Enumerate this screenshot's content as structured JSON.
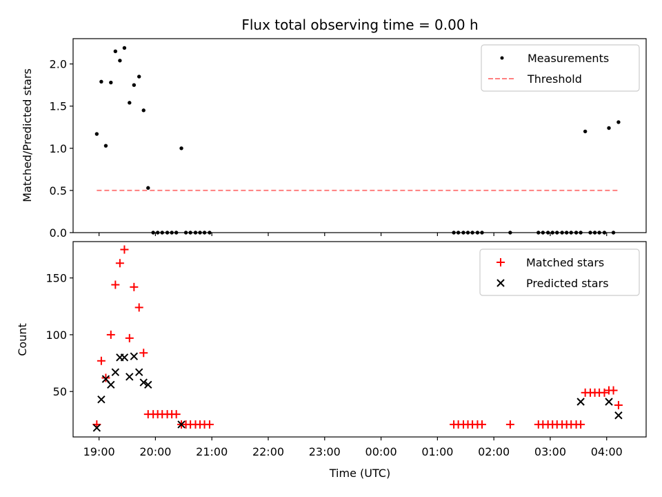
{
  "chart_data": [
    {
      "type": "scatter",
      "title": "Flux total observing time = 0.00 h",
      "xlabel": "",
      "ylabel": "Matched/Predicted stars",
      "xlim": [
        18.54,
        28.7
      ],
      "ylim": [
        0.0,
        2.3
      ],
      "yticks": [
        "0.0",
        "0.5",
        "1.0",
        "1.5",
        "2.0"
      ],
      "legend_position": "upper right",
      "grid": false,
      "series": [
        {
          "name": "Measurements",
          "marker": "dot",
          "color": "#000000",
          "x": [
            18.96,
            19.04,
            19.12,
            19.21,
            19.29,
            19.37,
            19.45,
            19.54,
            19.62,
            19.71,
            19.79,
            19.87,
            19.96,
            20.04,
            20.12,
            20.21,
            20.29,
            20.37,
            20.46,
            20.54,
            20.62,
            20.71,
            20.79,
            20.87,
            20.96,
            25.29,
            25.37,
            25.46,
            25.54,
            25.62,
            25.71,
            25.79,
            26.29,
            26.79,
            26.87,
            26.96,
            27.04,
            27.12,
            27.21,
            27.29,
            27.37,
            27.46,
            27.54,
            27.62,
            27.71,
            27.79,
            27.87,
            27.96,
            28.04,
            28.12,
            28.21
          ],
          "y": [
            1.17,
            1.79,
            1.03,
            1.78,
            2.15,
            2.04,
            2.19,
            1.54,
            1.75,
            1.85,
            1.45,
            0.53,
            0.0,
            0.0,
            0.0,
            0.0,
            0.0,
            0.0,
            1.0,
            0.0,
            0.0,
            0.0,
            0.0,
            0.0,
            0.0,
            0.0,
            0.0,
            0.0,
            0.0,
            0.0,
            0.0,
            0.0,
            0.0,
            0.0,
            0.0,
            0.0,
            0.0,
            0.0,
            0.0,
            0.0,
            0.0,
            0.0,
            0.0,
            1.2,
            0.0,
            0.0,
            0.0,
            0.0,
            1.24,
            0.0,
            1.31
          ]
        },
        {
          "name": "Threshold",
          "marker": "dashed-line",
          "color": "#ff7f7f",
          "x": [
            18.96,
            28.21
          ],
          "y": [
            0.5,
            0.5
          ]
        }
      ]
    },
    {
      "type": "scatter",
      "title": "",
      "xlabel": "Time (UTC)",
      "ylabel": "Count",
      "xlim": [
        18.54,
        28.7
      ],
      "ylim": [
        10,
        182
      ],
      "yticks": [
        "50",
        "100",
        "150"
      ],
      "xticks": [
        "19:00",
        "20:00",
        "21:00",
        "22:00",
        "23:00",
        "00:00",
        "01:00",
        "02:00",
        "03:00",
        "04:00"
      ],
      "legend_position": "upper right",
      "grid": false,
      "series": [
        {
          "name": "Matched stars",
          "marker": "plus",
          "color": "#ff0000",
          "x": [
            18.96,
            19.04,
            19.12,
            19.21,
            19.29,
            19.37,
            19.45,
            19.54,
            19.62,
            19.71,
            19.79,
            19.87,
            19.96,
            20.04,
            20.12,
            20.21,
            20.29,
            20.37,
            20.46,
            20.54,
            20.62,
            20.71,
            20.79,
            20.87,
            20.96,
            25.29,
            25.37,
            25.46,
            25.54,
            25.62,
            25.71,
            25.79,
            26.29,
            26.79,
            26.87,
            26.96,
            27.04,
            27.12,
            27.21,
            27.29,
            27.37,
            27.46,
            27.54,
            27.62,
            27.71,
            27.79,
            27.87,
            27.96,
            28.04,
            28.12,
            28.21
          ],
          "y": [
            21,
            77,
            62,
            100,
            144,
            163,
            175,
            97,
            142,
            124,
            84,
            30,
            30,
            30,
            30,
            30,
            30,
            30,
            21,
            21,
            21,
            21,
            21,
            21,
            21,
            21,
            21,
            21,
            21,
            21,
            21,
            21,
            21,
            21,
            21,
            21,
            21,
            21,
            21,
            21,
            21,
            21,
            21,
            49,
            49,
            49,
            49,
            49,
            51,
            51,
            38
          ]
        },
        {
          "name": "Predicted stars",
          "marker": "x",
          "color": "#000000",
          "x": [
            18.96,
            19.04,
            19.12,
            19.21,
            19.29,
            19.37,
            19.45,
            19.54,
            19.62,
            19.71,
            19.79,
            19.87,
            20.46,
            27.54,
            28.04,
            28.21
          ],
          "y": [
            18,
            43,
            61,
            56,
            67,
            80,
            80,
            63,
            81,
            67,
            58,
            56,
            21,
            41,
            41,
            29
          ]
        }
      ]
    }
  ]
}
